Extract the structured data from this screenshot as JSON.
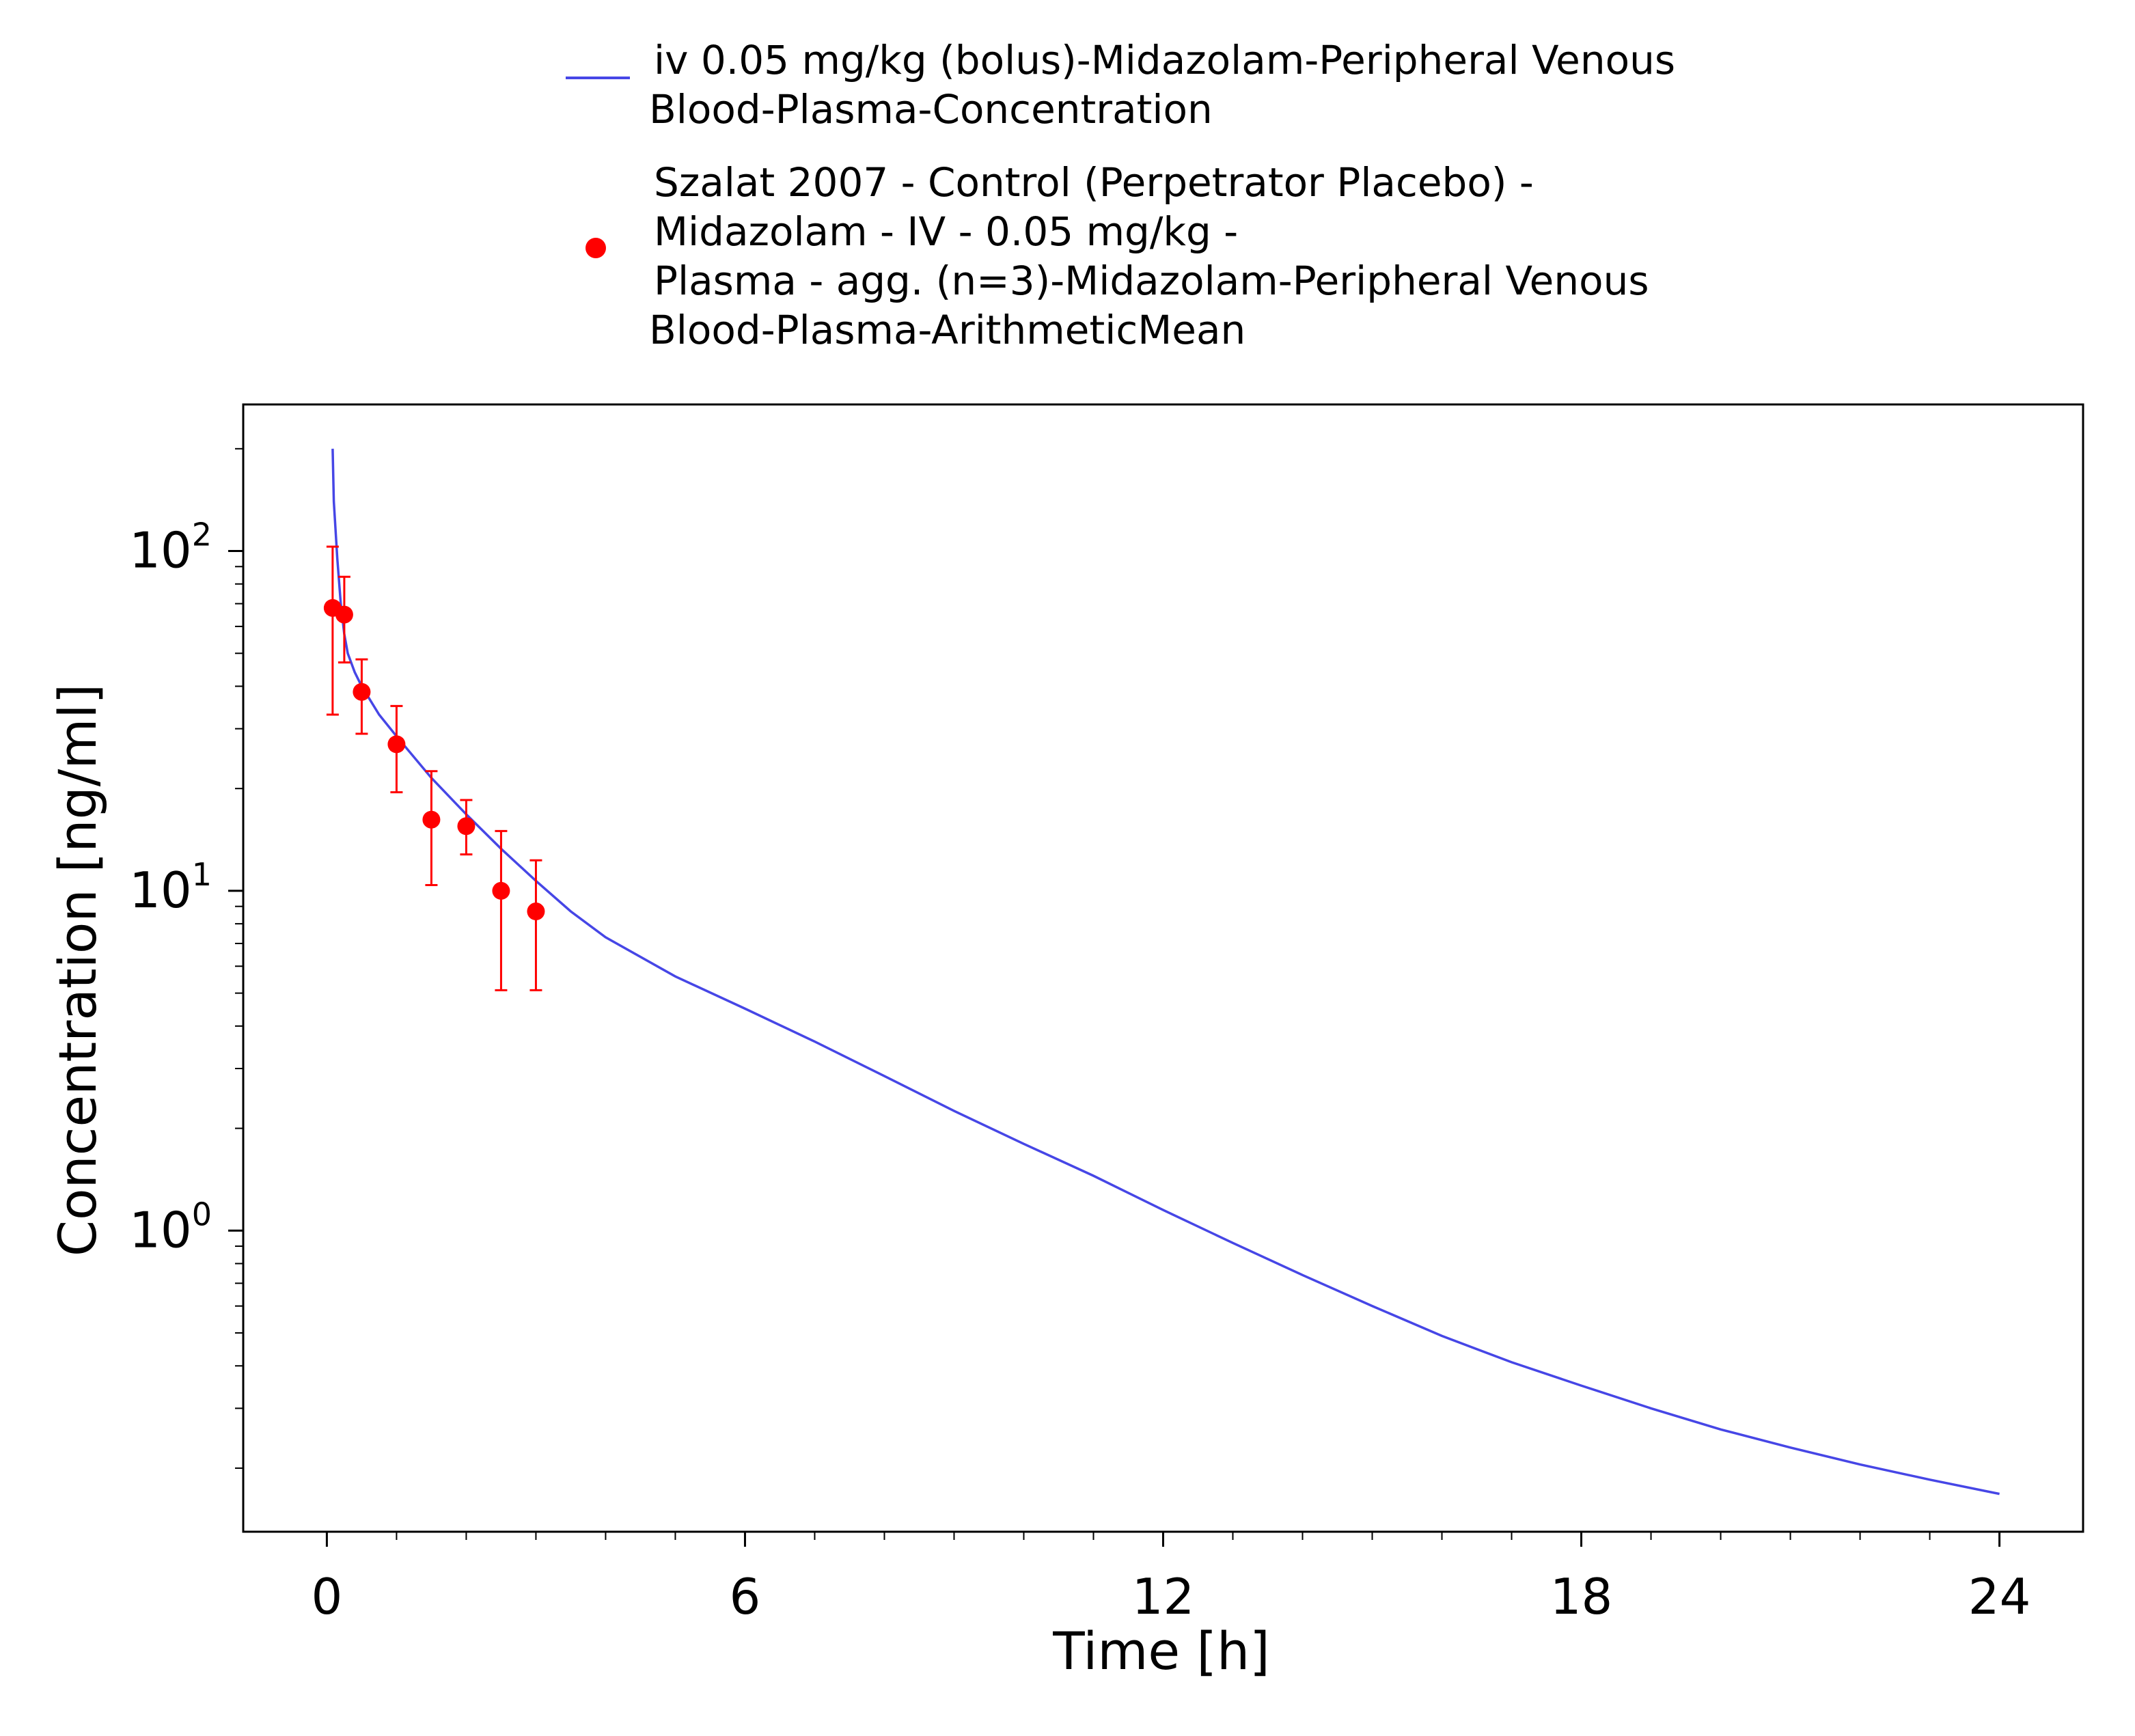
{
  "chart_data": {
    "type": "line",
    "xlabel": "Time [h]",
    "ylabel": "Concentration [ng/ml]",
    "x_scale": "linear",
    "y_scale": "log",
    "xlim": [
      -1.2,
      25.2
    ],
    "ylim": [
      0.13,
      270
    ],
    "x_ticks": [
      0,
      6,
      12,
      18,
      24
    ],
    "x_tick_labels": [
      "0",
      "6",
      "12",
      "18",
      "24"
    ],
    "y_ticks": [
      {
        "value": 1,
        "base": "10",
        "exp": "0"
      },
      {
        "value": 10,
        "base": "10",
        "exp": "1"
      },
      {
        "value": 100,
        "base": "10",
        "exp": "2"
      }
    ],
    "grid": false,
    "legend_position": "top",
    "colors": {
      "simulation": "#4646e6",
      "observed": "#ff0000"
    },
    "series": [
      {
        "name": "iv 0.05 mg/kg (bolus)-Midazolam-Peripheral Venous Blood-Plasma-Concentration",
        "legend_lines": [
          "iv 0.05 mg/kg (bolus)-Midazolam-Peripheral Venous",
          "Blood-Plasma-Concentration"
        ],
        "kind": "line",
        "x": [
          0.083,
          0.1,
          0.15,
          0.2,
          0.25,
          0.3,
          0.4,
          0.5,
          0.75,
          1.0,
          1.5,
          2.0,
          2.5,
          3.0,
          3.5,
          4.0,
          5.0,
          6.0,
          7.0,
          8.0,
          9.0,
          10.0,
          11.0,
          12.0,
          13.0,
          14.0,
          15.0,
          16.0,
          17.0,
          18.0,
          19.0,
          20.0,
          21.0,
          22.0,
          23.0,
          24.0
        ],
        "y": [
          200,
          140,
          95,
          70,
          57,
          50,
          44,
          40,
          33,
          28.5,
          21.5,
          16.8,
          13.3,
          10.7,
          8.7,
          7.3,
          5.6,
          4.5,
          3.6,
          2.85,
          2.25,
          1.8,
          1.45,
          1.15,
          0.92,
          0.74,
          0.6,
          0.49,
          0.41,
          0.35,
          0.3,
          0.26,
          0.23,
          0.205,
          0.185,
          0.168
        ]
      },
      {
        "name": "Szalat 2007 - Control (Perpetrator Placebo) - Midazolam - IV - 0.05 mg/kg - Plasma - agg. (n=3)-Midazolam-Peripheral Venous Blood-Plasma-ArithmeticMean",
        "legend_lines": [
          "Szalat 2007 - Control (Perpetrator Placebo) -",
          "Midazolam - IV - 0.05 mg/kg -",
          "Plasma - agg. (n=3)-Midazolam-Peripheral Venous",
          "Blood-Plasma-ArithmeticMean"
        ],
        "kind": "scatter",
        "x": [
          0.083,
          0.25,
          0.5,
          1.0,
          1.5,
          2.0,
          2.5,
          3.0
        ],
        "y": [
          68,
          65,
          38.5,
          27,
          16.2,
          15.5,
          10,
          8.7
        ],
        "y_lower": [
          33,
          47,
          29,
          19.5,
          10.4,
          12.8,
          5.1,
          5.1
        ],
        "y_upper": [
          103,
          84,
          48,
          35,
          22.5,
          18.5,
          15,
          12.3
        ]
      }
    ]
  }
}
